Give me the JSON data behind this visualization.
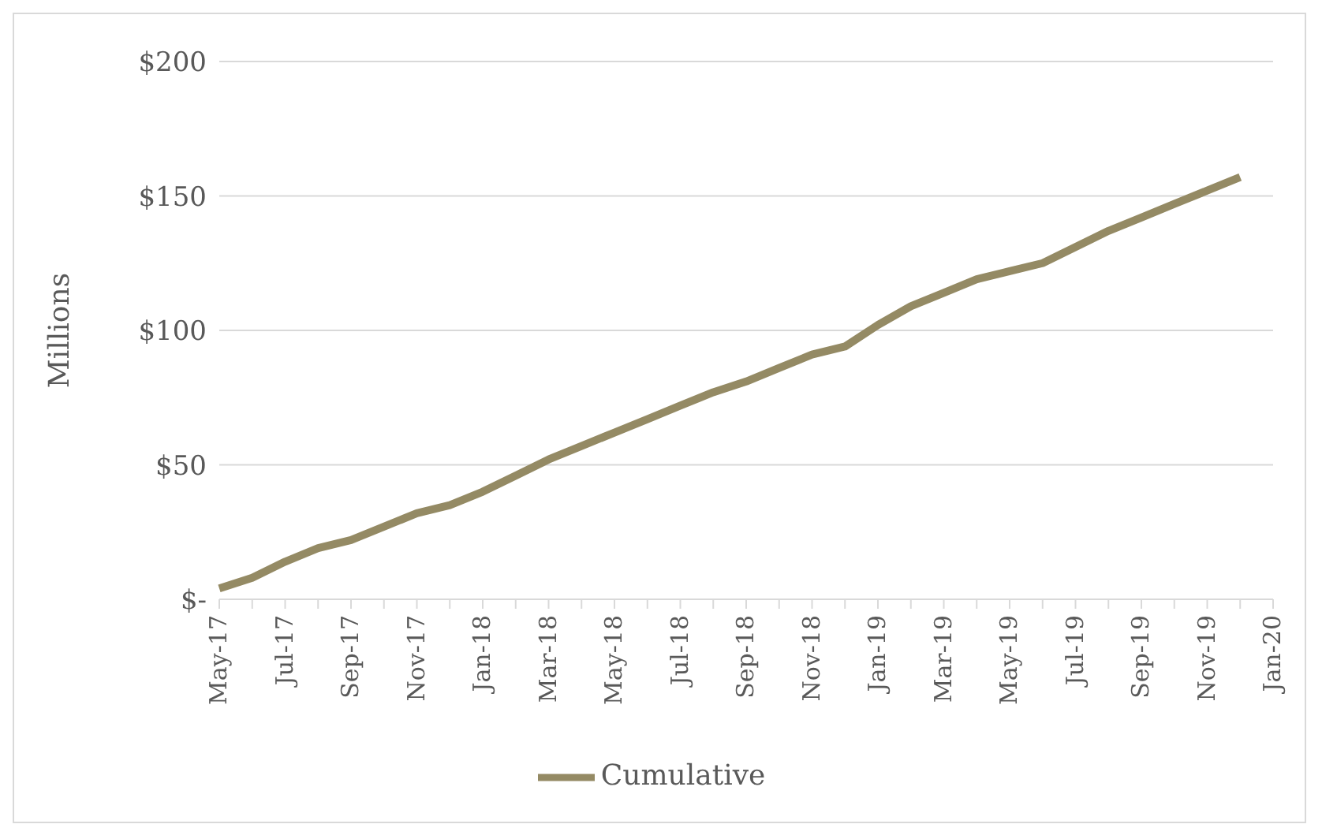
{
  "chart_data": {
    "type": "line",
    "ylabel": "Millions",
    "categories": [
      "May-17",
      null,
      "Jul-17",
      null,
      "Sep-17",
      null,
      "Nov-17",
      null,
      "Jan-18",
      null,
      "Mar-18",
      null,
      "May-18",
      null,
      "Jul-18",
      null,
      "Sep-18",
      null,
      "Nov-18",
      null,
      "Jan-19",
      null,
      "Mar-19",
      null,
      "May-19",
      null,
      "Jul-19",
      null,
      "Sep-19",
      null,
      "Nov-19",
      null,
      "Jan-20"
    ],
    "series": [
      {
        "name": "Cumulative",
        "color": "#948a64",
        "values": [
          4,
          8,
          14,
          19,
          22,
          27,
          32,
          35,
          40,
          46,
          52,
          57,
          62,
          67,
          72,
          77,
          81,
          86,
          91,
          94,
          102,
          109,
          114,
          119,
          122,
          125,
          131,
          137,
          142,
          147,
          152,
          157,
          null
        ]
      }
    ],
    "ylim": [
      0,
      200
    ],
    "yticks": [
      {
        "value": 0,
        "label": "$-"
      },
      {
        "value": 50,
        "label": "$50"
      },
      {
        "value": 100,
        "label": "$100"
      },
      {
        "value": 150,
        "label": "$150"
      },
      {
        "value": 200,
        "label": "$200"
      }
    ],
    "grid": "y",
    "legend": "bottom",
    "marker": "none",
    "line_style": "solid"
  }
}
